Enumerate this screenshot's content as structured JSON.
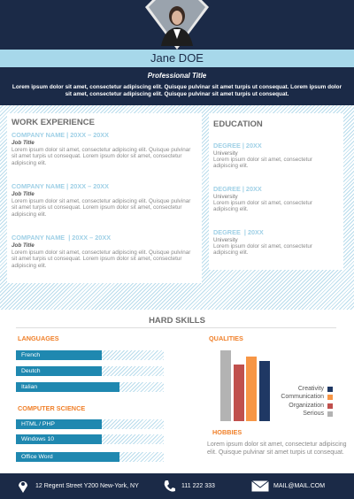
{
  "header": {
    "name": "Jane DOE",
    "title": "Professional Title",
    "summary": "Lorem ipsum dolor sit amet, consectetur adipiscing elit. Quisque pulvinar sit amet turpis ut consequat. Lorem ipsum dolor sit amet, consectetur adipiscing elit. Quisque pulvinar sit amet turpis ut consequat."
  },
  "work_experience": {
    "title": "WORK EXPERIENCE",
    "entries": [
      {
        "company": "COMPANY NAME | 20XX – 20XX",
        "job_title": "Job Title",
        "description": "Lorem ipsum dolor sit amet, consectetur adipiscing elit. Quisque pulvinar sit amet turpis ut consequat. Lorem ipsum dolor sit amet, consectetur adipiscing elit."
      },
      {
        "company": "COMPANY NAME | 20XX – 20XX",
        "job_title": "Job Title",
        "description": "Lorem ipsum dolor sit amet, consectetur adipiscing elit. Quisque pulvinar sit amet turpis ut consequat. Lorem ipsum dolor sit amet, consectetur adipiscing elit."
      },
      {
        "company": "COMPANY NAME  | 20XX – 20XX",
        "job_title": "Job Title",
        "description": "Lorem ipsum dolor sit amet, consectetur adipiscing elit. Quisque pulvinar sit amet turpis ut consequat. Lorem ipsum dolor sit amet, consectetur adipiscing elit."
      }
    ]
  },
  "education": {
    "title": "EDUCATION",
    "entries": [
      {
        "degree": "DEGREE | 20XX",
        "school": "University",
        "description": "Lorem ipsum dolor sit amet, consectetur adipiscing elit."
      },
      {
        "degree": "DEGREE | 20XX",
        "school": "University",
        "description": "Lorem ipsum dolor sit amet, consectetur adipiscing elit."
      },
      {
        "degree": "DEGREE  | 20XX",
        "school": "University",
        "description": "Lorem ipsum dolor sit amet, consectetur adipiscing elit."
      }
    ]
  },
  "hard_skills": {
    "title": "HARD SKILLS",
    "languages": {
      "title": "LANGUAGES",
      "items": [
        {
          "name": "French",
          "level": 58
        },
        {
          "name": "Deutch",
          "level": 58
        },
        {
          "name": "Italian",
          "level": 70
        }
      ]
    },
    "computer_science": {
      "title": "COMPUTER SCIENCE",
      "items": [
        {
          "name": "HTML / PHP",
          "level": 58
        },
        {
          "name": "Windows 10",
          "level": 58
        },
        {
          "name": "Office Word",
          "level": 70
        }
      ]
    },
    "qualities": {
      "title": "QUALITIES",
      "ylim": [
        0,
        100
      ],
      "items": [
        {
          "name": "Serious",
          "color": "#b3b3b3",
          "value": 100
        },
        {
          "name": "Organization",
          "color": "#c0504d",
          "value": 80
        },
        {
          "name": "Communication",
          "color": "#f79646",
          "value": 91
        },
        {
          "name": "Creativity",
          "color": "#1f3864",
          "value": 85
        }
      ]
    },
    "hobbies": {
      "title": "HOBBIES",
      "text": "Lorem ipsum dolor sit amet, consectetur adipiscing elit. Quisque pulvinar sit amet turpis ut consequat."
    }
  },
  "footer": {
    "address": "12 Regent Street Y200 New-York, NY",
    "phone": "111 222 333",
    "email": "MAIL@MAIL.COM"
  }
}
